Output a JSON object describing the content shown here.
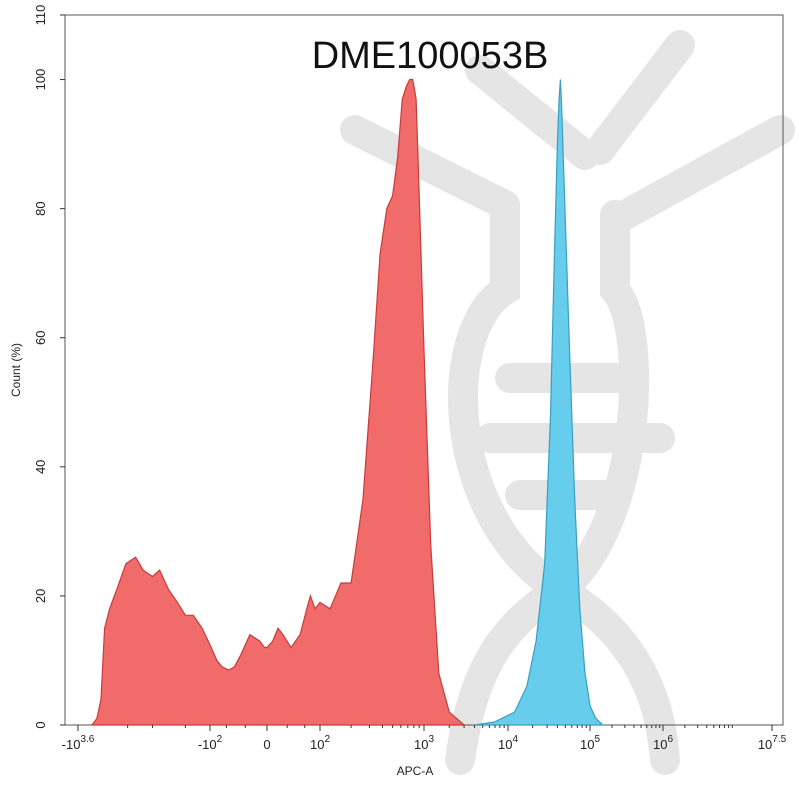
{
  "chart_data": {
    "type": "area",
    "title": "DME100053B",
    "xlabel": "APC-A",
    "ylabel": "Count (%)",
    "x_scale": "biexponential",
    "ylim": [
      0,
      110
    ],
    "xlim": [
      -3981,
      31623000
    ],
    "x_ticks": [
      {
        "value": -3981,
        "base": "-10",
        "exp": "3.6"
      },
      {
        "value": -100,
        "base": "-10",
        "exp": "2"
      },
      {
        "value": 0,
        "base": "0",
        "exp": ""
      },
      {
        "value": 100,
        "base": "10",
        "exp": "2"
      },
      {
        "value": 1000,
        "base": "10",
        "exp": "3"
      },
      {
        "value": 10000,
        "base": "10",
        "exp": "4"
      },
      {
        "value": 100000,
        "base": "10",
        "exp": "5"
      },
      {
        "value": 1000000,
        "base": "10",
        "exp": "6"
      },
      {
        "value": 31623000,
        "base": "10",
        "exp": "7.5"
      }
    ],
    "y_ticks": [
      0,
      20,
      40,
      60,
      80,
      100,
      110
    ],
    "grid": false,
    "legend": "none",
    "series": [
      {
        "color": "#f26b6b",
        "stroke": "#c43c3c",
        "points": [
          [
            -2700,
            0
          ],
          [
            -2350,
            1
          ],
          [
            -2100,
            4
          ],
          [
            -1900,
            15
          ],
          [
            -1650,
            18
          ],
          [
            -1350,
            21
          ],
          [
            -1050,
            25
          ],
          [
            -800,
            26
          ],
          [
            -650,
            24
          ],
          [
            -500,
            23
          ],
          [
            -410,
            24
          ],
          [
            -320,
            21
          ],
          [
            -250,
            19
          ],
          [
            -200,
            17
          ],
          [
            -160,
            17
          ],
          [
            -125,
            15
          ],
          [
            -95,
            12
          ],
          [
            -75,
            10
          ],
          [
            -60,
            9
          ],
          [
            -45,
            8.5
          ],
          [
            -35,
            9
          ],
          [
            -25,
            11
          ],
          [
            -15,
            14
          ],
          [
            -6,
            13
          ],
          [
            -2,
            12
          ],
          [
            0,
            12
          ],
          [
            5,
            13
          ],
          [
            10,
            15
          ],
          [
            15,
            14
          ],
          [
            25,
            12
          ],
          [
            40,
            14
          ],
          [
            55,
            18
          ],
          [
            65,
            20
          ],
          [
            80,
            18
          ],
          [
            100,
            19
          ],
          [
            125,
            18
          ],
          [
            160,
            22
          ],
          [
            200,
            22
          ],
          [
            260,
            35
          ],
          [
            320,
            55
          ],
          [
            380,
            73
          ],
          [
            440,
            80
          ],
          [
            500,
            82
          ],
          [
            560,
            88
          ],
          [
            620,
            97
          ],
          [
            680,
            99
          ],
          [
            730,
            100
          ],
          [
            780,
            100
          ],
          [
            840,
            97
          ],
          [
            900,
            82
          ],
          [
            1000,
            58
          ],
          [
            1200,
            28
          ],
          [
            1500,
            8
          ],
          [
            2000,
            2
          ],
          [
            3000,
            0
          ]
        ]
      },
      {
        "color": "#67cdec",
        "stroke": "#3a9fbf",
        "points": [
          [
            4000,
            0
          ],
          [
            7000,
            0.5
          ],
          [
            12000,
            2
          ],
          [
            17000,
            6
          ],
          [
            22000,
            13
          ],
          [
            28000,
            25
          ],
          [
            33000,
            48
          ],
          [
            37000,
            74
          ],
          [
            40000,
            90
          ],
          [
            42000,
            97
          ],
          [
            43500,
            100
          ],
          [
            45000,
            96
          ],
          [
            48000,
            85
          ],
          [
            55000,
            62
          ],
          [
            65000,
            35
          ],
          [
            75000,
            18
          ],
          [
            87000,
            8
          ],
          [
            100000,
            3
          ],
          [
            120000,
            1
          ],
          [
            150000,
            0
          ]
        ]
      }
    ]
  }
}
